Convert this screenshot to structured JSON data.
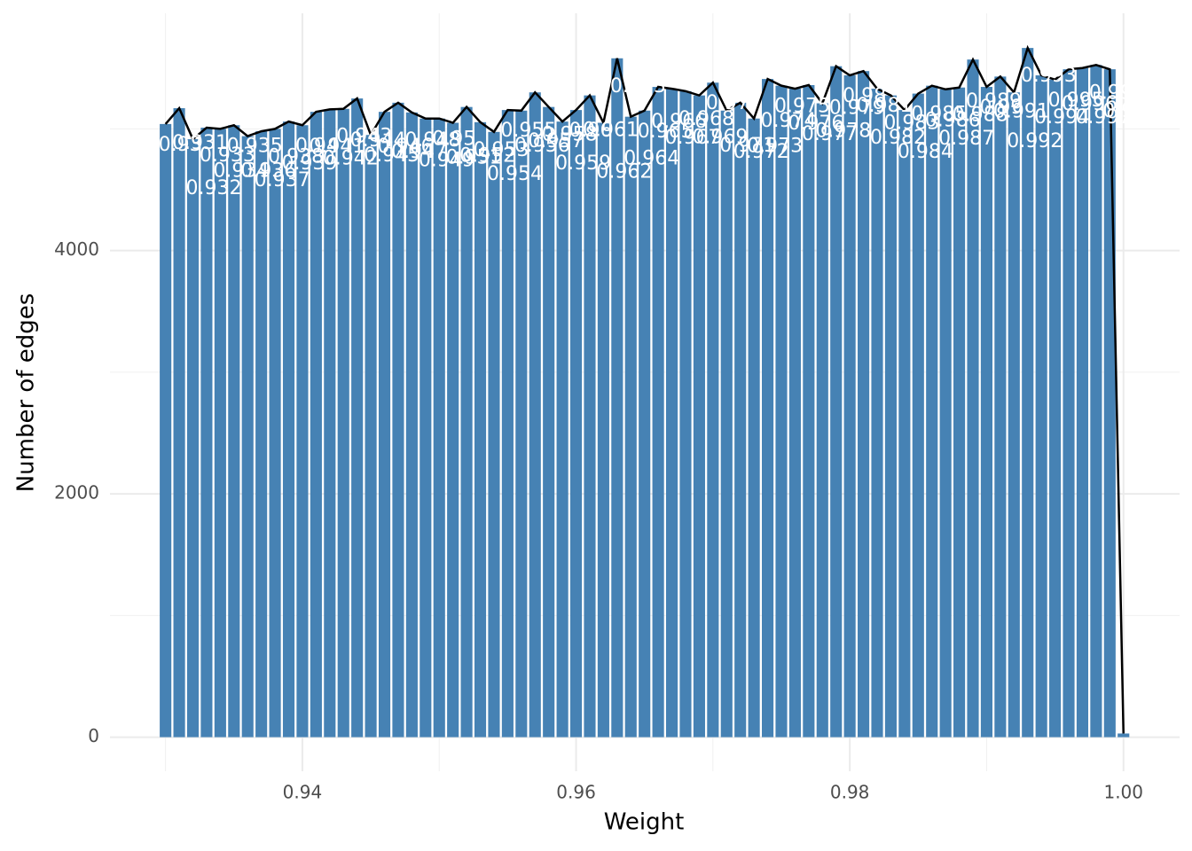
{
  "chart_data": {
    "type": "bar",
    "x_label": "Weight",
    "y_label": "Number of edges",
    "x": [
      0.93,
      0.931,
      0.932,
      0.933,
      0.934,
      0.935,
      0.936,
      0.937,
      0.938,
      0.939,
      0.94,
      0.941,
      0.942,
      0.943,
      0.944,
      0.945,
      0.946,
      0.947,
      0.948,
      0.949,
      0.95,
      0.951,
      0.952,
      0.953,
      0.954,
      0.955,
      0.956,
      0.957,
      0.958,
      0.959,
      0.96,
      0.961,
      0.962,
      0.963,
      0.964,
      0.965,
      0.966,
      0.967,
      0.968,
      0.969,
      0.97,
      0.971,
      0.972,
      0.973,
      0.974,
      0.975,
      0.976,
      0.977,
      0.978,
      0.979,
      0.98,
      0.981,
      0.982,
      0.983,
      0.984,
      0.985,
      0.986,
      0.987,
      0.988,
      0.989,
      0.99,
      0.991,
      0.992,
      0.993,
      0.994,
      0.995,
      0.996,
      0.997,
      0.998,
      0.999,
      1
    ],
    "values": [
      5040,
      5170,
      4915,
      5010,
      5000,
      5030,
      4940,
      4980,
      5000,
      5060,
      5030,
      5140,
      5160,
      5165,
      5250,
      4950,
      5140,
      5215,
      5135,
      5085,
      5085,
      5050,
      5180,
      5055,
      4975,
      5155,
      5150,
      5300,
      5180,
      5060,
      5155,
      5275,
      5050,
      5580,
      5100,
      5150,
      5345,
      5330,
      5310,
      5275,
      5380,
      5150,
      5215,
      5085,
      5410,
      5355,
      5330,
      5360,
      5210,
      5515,
      5440,
      5475,
      5330,
      5275,
      5155,
      5290,
      5355,
      5325,
      5340,
      5570,
      5345,
      5430,
      5300,
      5665,
      5440,
      5405,
      5490,
      5500,
      5525,
      5490,
      30
    ],
    "color": "#4682b4",
    "line_color": "#000000",
    "xlim": [
      0.92594,
      1.0041
    ],
    "ylim": [
      -280,
      5950
    ],
    "xticks": [
      0.94,
      0.96,
      0.98,
      {
        "value": 1,
        "label": "1.00"
      }
    ],
    "yticks": [
      0,
      2000,
      4000
    ],
    "xminor": [
      0.93,
      0.95,
      0.97,
      0.99
    ],
    "yminor": [
      1000,
      3000,
      5000
    ],
    "grid": true
  }
}
